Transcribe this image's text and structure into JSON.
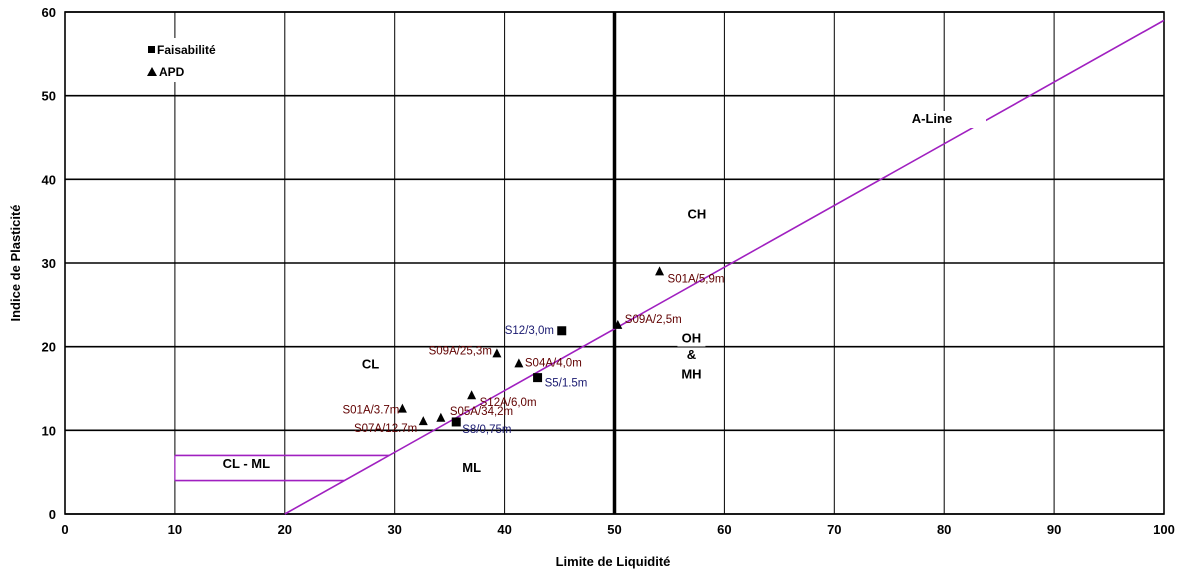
{
  "chart_data": {
    "type": "scatter",
    "title": "",
    "xlabel": "Limite de Liquidité",
    "ylabel": "Indice de Plasticité",
    "xlim": [
      0,
      100
    ],
    "ylim": [
      0,
      60
    ],
    "x_ticks": [
      0,
      10,
      20,
      30,
      40,
      50,
      60,
      70,
      80,
      90,
      100
    ],
    "y_ticks": [
      0,
      10,
      20,
      30,
      40,
      50,
      60
    ],
    "grid": true,
    "legend_position": "top-left",
    "colors": {
      "aline": "#a020c0",
      "feasibility_label": "#1a1a70",
      "apd_label": "#600000",
      "marker": "#000000"
    },
    "series": [
      {
        "name": "Faisabilité",
        "marker": "square",
        "points": [
          {
            "x": 45.2,
            "y": 21.9,
            "label": "S12/3,0m"
          },
          {
            "x": 43.0,
            "y": 16.3,
            "label": "S5/1.5m"
          },
          {
            "x": 35.6,
            "y": 11.0,
            "label": "S8/0,75m"
          }
        ]
      },
      {
        "name": "APD",
        "marker": "triangle",
        "points": [
          {
            "x": 54.1,
            "y": 29.0,
            "label": "S01A/5,9m"
          },
          {
            "x": 50.3,
            "y": 22.6,
            "label": "S09A/2,5m"
          },
          {
            "x": 39.3,
            "y": 19.2,
            "label": "S09A/25,3m"
          },
          {
            "x": 41.3,
            "y": 18.0,
            "label": "S04A/4,0m"
          },
          {
            "x": 37.0,
            "y": 14.2,
            "label": "S12A/6,0m"
          },
          {
            "x": 30.7,
            "y": 12.6,
            "label": "S01A/3.7m"
          },
          {
            "x": 34.2,
            "y": 11.5,
            "label": "S05A/34,2m"
          },
          {
            "x": 32.6,
            "y": 11.1,
            "label": "S07A/12.7m"
          }
        ]
      }
    ],
    "lines": {
      "a_line": {
        "label": "A-Line",
        "points": [
          [
            20,
            0
          ],
          [
            100,
            59
          ]
        ]
      },
      "cl_ml_upper": {
        "points": [
          [
            10,
            7
          ],
          [
            29.5,
            7
          ]
        ]
      },
      "cl_ml_lower": {
        "points": [
          [
            10,
            4
          ],
          [
            25.4,
            4
          ]
        ]
      },
      "ll_50": {
        "x": 50
      }
    },
    "zones": [
      {
        "name": "CH",
        "x": 57.5,
        "y": 35.3
      },
      {
        "name": "CL",
        "x": 27.8,
        "y": 17.4
      },
      {
        "name": "CL - ML",
        "x": 16.5,
        "y": 5.5
      },
      {
        "name": "ML",
        "x": 37.0,
        "y": 5.0
      },
      {
        "name": "OH",
        "x": 57.0,
        "y": 20.5
      },
      {
        "name": "&",
        "x": 57.0,
        "y": 18.5
      },
      {
        "name": "MH",
        "x": 57.0,
        "y": 16.2
      }
    ]
  }
}
